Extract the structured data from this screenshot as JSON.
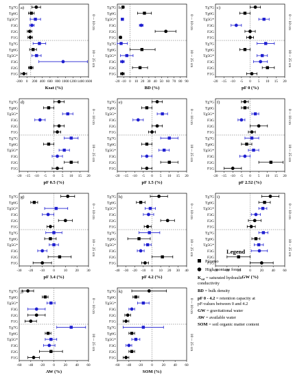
{
  "chart_data": [
    {
      "panel": "a)",
      "xlabel": "Ksat (%)",
      "xlim": [
        -200,
        1000
      ],
      "ticks": [
        -200,
        0,
        200,
        400,
        600,
        800,
        1000,
        1200,
        1400,
        1600
      ],
      "points": [
        {
          "v": 95,
          "lo": 20,
          "hi": 170
        },
        {
          "v": 10,
          "lo": -40,
          "hi": 60
        },
        {
          "v": 80,
          "lo": -10,
          "hi": 170
        },
        {
          "v": 20,
          "lo": -20,
          "hi": 60
        },
        {
          "v": -20,
          "lo": -60,
          "hi": 20
        },
        {
          "v": -10,
          "lo": -50,
          "hi": 30
        },
        {
          "v": 150,
          "lo": 40,
          "hi": 260
        },
        {
          "v": 40,
          "lo": -20,
          "hi": 100
        },
        {
          "v": 100,
          "lo": 20,
          "hi": 180
        },
        {
          "v": 560,
          "lo": 140,
          "hi": 980
        },
        {
          "v": 0,
          "lo": -40,
          "hi": 40
        },
        {
          "v": -120,
          "lo": -170,
          "hi": -70
        }
      ]
    },
    {
      "panel": "b)",
      "xlabel": "BD (%)",
      "xlim": [
        -20,
        90
      ],
      "ticks": [
        -20,
        -10,
        0,
        10,
        20,
        30,
        40,
        50,
        60,
        70,
        80,
        90
      ],
      "points": [
        {
          "v": -11,
          "lo": -13,
          "hi": -9
        },
        {
          "v": 23,
          "lo": 12,
          "hi": 34
        },
        {
          "v": -12,
          "lo": -14,
          "hi": -10
        },
        {
          "v": 18,
          "lo": 15,
          "hi": 21
        },
        {
          "v": 57,
          "lo": 40,
          "hi": 73
        },
        {
          "v": -15,
          "lo": -17,
          "hi": -13
        },
        {
          "v": -14,
          "lo": -24,
          "hi": -4
        },
        {
          "v": 19,
          "lo": 0,
          "hi": 40
        },
        {
          "v": -5,
          "lo": -15,
          "hi": 5
        },
        {
          "v": -12,
          "lo": -15,
          "hi": -9
        },
        {
          "v": 16,
          "lo": 4,
          "hi": 28
        },
        {
          "v": -12,
          "lo": -15,
          "hi": -9
        }
      ]
    },
    {
      "panel": "c)",
      "xlabel": "pF 0 (%)",
      "xlim": [
        -20,
        20
      ],
      "ticks": [
        -20,
        -15,
        -10,
        -5,
        0,
        5,
        10,
        15,
        20
      ],
      "points": [
        {
          "v": 3,
          "lo": 0,
          "hi": 6
        },
        {
          "v": -3,
          "lo": -6,
          "hi": 0
        },
        {
          "v": 8,
          "lo": 5,
          "hi": 11
        },
        {
          "v": -8,
          "lo": -11,
          "hi": -5
        },
        {
          "v": 0,
          "lo": -3,
          "hi": 3
        },
        {
          "v": 0,
          "lo": -2,
          "hi": 2
        },
        {
          "v": 9,
          "lo": 4,
          "hi": 14
        },
        {
          "v": -3,
          "lo": -6,
          "hi": 0
        },
        {
          "v": 7,
          "lo": 4,
          "hi": 10
        },
        {
          "v": 6,
          "lo": 2,
          "hi": 10
        },
        {
          "v": 10,
          "lo": 7,
          "hi": 14
        },
        {
          "v": 1,
          "lo": -2,
          "hi": 4
        }
      ]
    },
    {
      "panel": "d)",
      "xlabel": "pF 0.5 (%)",
      "xlim": [
        -20,
        20
      ],
      "ticks": [
        -20,
        -15,
        -10,
        -5,
        0,
        5,
        10,
        15,
        20
      ],
      "points": [
        {
          "v": 3,
          "lo": 0,
          "hi": 6
        },
        {
          "v": -3,
          "lo": -6,
          "hi": 0
        },
        {
          "v": 8,
          "lo": 5,
          "hi": 11
        },
        {
          "v": -8,
          "lo": -11,
          "hi": -5
        },
        {
          "v": 3,
          "lo": 0,
          "hi": 6
        },
        {
          "v": 2,
          "lo": 0,
          "hi": 4
        },
        {
          "v": 10,
          "lo": 6,
          "hi": 14
        },
        {
          "v": -3,
          "lo": -6,
          "hi": 0
        },
        {
          "v": 6,
          "lo": 3,
          "hi": 9
        },
        {
          "v": 2,
          "lo": -1,
          "hi": 5
        },
        {
          "v": 10,
          "lo": 6,
          "hi": 14
        },
        {
          "v": 2,
          "lo": -1,
          "hi": 5
        }
      ]
    },
    {
      "panel": "e)",
      "xlabel": "pF 1.5 (%)",
      "xlim": [
        -20,
        20
      ],
      "ticks": [
        -20,
        -15,
        -10,
        -5,
        0,
        5,
        10,
        15,
        20
      ],
      "points": [
        {
          "v": 3,
          "lo": 0,
          "hi": 6
        },
        {
          "v": -3,
          "lo": -6,
          "hi": 0
        },
        {
          "v": 6,
          "lo": 3,
          "hi": 9
        },
        {
          "v": -8,
          "lo": -11,
          "hi": -5
        },
        {
          "v": 3,
          "lo": 0,
          "hi": 6
        },
        {
          "v": 0,
          "lo": -2,
          "hi": 2
        },
        {
          "v": 10,
          "lo": 5,
          "hi": 15
        },
        {
          "v": -3,
          "lo": -6,
          "hi": 0
        },
        {
          "v": 7,
          "lo": 4,
          "hi": 10
        },
        {
          "v": -3,
          "lo": -6,
          "hi": 0
        },
        {
          "v": 10,
          "lo": 5,
          "hi": 15
        },
        {
          "v": -3,
          "lo": -6,
          "hi": 0
        }
      ]
    },
    {
      "panel": "f)",
      "xlabel": "pF 2.52 (%)",
      "xlim": [
        -20,
        20
      ],
      "ticks": [
        -20,
        -15,
        -10,
        -5,
        0,
        5,
        10,
        15,
        20
      ],
      "points": [
        {
          "v": -3,
          "lo": -5,
          "hi": -1
        },
        {
          "v": -3,
          "lo": -5,
          "hi": -1
        },
        {
          "v": 3,
          "lo": 1,
          "hi": 5
        },
        {
          "v": -5,
          "lo": -7,
          "hi": -3
        },
        {
          "v": 5,
          "lo": 0,
          "hi": 10
        },
        {
          "v": 1,
          "lo": -1,
          "hi": 3
        },
        {
          "v": 1,
          "lo": -3,
          "hi": 5
        },
        {
          "v": -2,
          "lo": -5,
          "hi": 1
        },
        {
          "v": 2,
          "lo": -1,
          "hi": 5
        },
        {
          "v": -3,
          "lo": -6,
          "hi": 0
        },
        {
          "v": 12,
          "lo": 5,
          "hi": 19
        },
        {
          "v": -10,
          "lo": -15,
          "hi": -5
        }
      ]
    },
    {
      "panel": "g)",
      "xlabel": "pF 3.4 (%)",
      "xlim": [
        -30,
        30
      ],
      "ticks": [
        -30,
        -20,
        -10,
        0,
        10,
        20,
        30
      ],
      "points": [
        {
          "v": 12,
          "lo": 6,
          "hi": 18
        },
        {
          "v": -17,
          "lo": -20,
          "hi": -14
        },
        {
          "v": 2,
          "lo": -8,
          "hi": 12
        },
        {
          "v": -5,
          "lo": -10,
          "hi": 0
        },
        {
          "v": 10,
          "lo": 4,
          "hi": 16
        },
        {
          "v": -3,
          "lo": -6,
          "hi": 0
        },
        {
          "v": 0,
          "lo": -7,
          "hi": 7
        },
        {
          "v": -3,
          "lo": -8,
          "hi": 2
        },
        {
          "v": 0,
          "lo": -4,
          "hi": 4
        },
        {
          "v": -10,
          "lo": -14,
          "hi": -6
        },
        {
          "v": 5,
          "lo": -5,
          "hi": 15
        },
        {
          "v": -10,
          "lo": -18,
          "hi": -2
        }
      ]
    },
    {
      "panel": "h)",
      "xlabel": "pF 4.2 (%)",
      "xlim": [
        -40,
        40
      ],
      "ticks": [
        -40,
        -30,
        -20,
        -10,
        0,
        10,
        20,
        30,
        40
      ],
      "points": [
        {
          "v": 8,
          "lo": -2,
          "hi": 18
        },
        {
          "v": -13,
          "lo": -18,
          "hi": -8
        },
        {
          "v": -2,
          "lo": -8,
          "hi": 4
        },
        {
          "v": -4,
          "lo": -10,
          "hi": 2
        },
        {
          "v": 18,
          "lo": 10,
          "hi": 26
        },
        {
          "v": -5,
          "lo": -9,
          "hi": -1
        },
        {
          "v": -3,
          "lo": -15,
          "hi": 9
        },
        {
          "v": -15,
          "lo": -28,
          "hi": -2
        },
        {
          "v": -5,
          "lo": -9,
          "hi": -1
        },
        {
          "v": -13,
          "lo": -17,
          "hi": -9
        },
        {
          "v": 12,
          "lo": 0,
          "hi": 24
        },
        {
          "v": -8,
          "lo": -12,
          "hi": -4
        }
      ]
    },
    {
      "panel": "i)",
      "xlabel": "GW (%)",
      "xlim": [
        -60,
        60
      ],
      "ticks": [
        -60,
        -40,
        -20,
        0,
        20,
        40,
        60
      ],
      "points": [
        {
          "v": 35,
          "lo": 20,
          "hi": 50
        },
        {
          "v": 25,
          "lo": 15,
          "hi": 35
        },
        {
          "v": 22,
          "lo": 15,
          "hi": 29
        },
        {
          "v": 10,
          "lo": 2,
          "hi": 18
        },
        {
          "v": 8,
          "lo": -3,
          "hi": 19
        },
        {
          "v": 2,
          "lo": -5,
          "hi": 9
        },
        {
          "v": 23,
          "lo": 15,
          "hi": 31
        },
        {
          "v": 10,
          "lo": 3,
          "hi": 17
        },
        {
          "v": 15,
          "lo": 7,
          "hi": 23
        },
        {
          "v": 16,
          "lo": 2,
          "hi": 30
        },
        {
          "v": -20,
          "lo": -40,
          "hi": 0
        },
        {
          "v": 20,
          "lo": 0,
          "hi": 40
        }
      ]
    },
    {
      "panel": "j)",
      "xlabel": "AW (%)",
      "xlim": [
        -60,
        60
      ],
      "ticks": [
        -60,
        -40,
        -20,
        0,
        20,
        40,
        60
      ],
      "points": [
        {
          "v": -45,
          "lo": -55,
          "hi": -35
        },
        {
          "v": -15,
          "lo": -20,
          "hi": -10
        },
        {
          "v": -5,
          "lo": -12,
          "hi": 2
        },
        {
          "v": -30,
          "lo": -45,
          "hi": -15
        },
        {
          "v": -30,
          "lo": -45,
          "hi": -15
        },
        {
          "v": -40,
          "lo": -50,
          "hi": -30
        },
        {
          "v": 30,
          "lo": 5,
          "hi": 55
        },
        {
          "v": -10,
          "lo": -15,
          "hi": -5
        },
        {
          "v": -5,
          "lo": -15,
          "hi": 5
        },
        {
          "v": -8,
          "lo": -18,
          "hi": 2
        },
        {
          "v": -5,
          "lo": -25,
          "hi": 15
        },
        {
          "v": -35,
          "lo": -45,
          "hi": -25
        }
      ]
    },
    {
      "panel": "k)",
      "xlabel": "SOM (%)",
      "xlim": [
        -60,
        60
      ],
      "ticks": [
        -60,
        -40,
        -20,
        0,
        20,
        40,
        60
      ],
      "points": [
        {
          "v": -5,
          "lo": -35,
          "hi": 25
        },
        {
          "v": -28,
          "lo": -33,
          "hi": -23
        },
        {
          "v": -15,
          "lo": -25,
          "hi": -5
        },
        {
          "v": -35,
          "lo": -40,
          "hi": -30
        },
        {
          "v": -42,
          "lo": -47,
          "hi": -37
        },
        {
          "v": -45,
          "lo": -50,
          "hi": -40
        },
        {
          "v": -15,
          "lo": -50,
          "hi": 20
        },
        {
          "v": -35,
          "lo": -40,
          "hi": -30
        },
        {
          "v": -28,
          "lo": -35,
          "hi": -21
        },
        {
          "v": -40,
          "lo": -45,
          "hi": -35
        },
        {
          "v": -35,
          "lo": -40,
          "hi": -30
        },
        {
          "v": -45,
          "lo": -50,
          "hi": -40
        }
      ]
    }
  ],
  "rows": [
    "Tg7G",
    "Tg6G",
    "Tg5G*",
    "F3G",
    "F2G",
    "F1G",
    "Tg7G",
    "Tg6G",
    "Tg5G*",
    "F3G",
    "F2G",
    "F1G"
  ],
  "row_colors": [
    "#000000",
    "#000000",
    "#1f1fd0",
    "#1f1fd0",
    "#000000",
    "#000000",
    "#1f1fd0",
    "#000000",
    "#1f1fd0",
    "#1f1fd0",
    "#000000",
    "#000000"
  ],
  "row_marker": [
    "circle",
    "square",
    "square",
    "circle",
    "circle",
    "circle",
    "square",
    "square",
    "square",
    "circle",
    "square",
    "circle"
  ],
  "depth_top": "0 -- 10 cm",
  "depth_bottom": "10 -- 25 cm",
  "legend": {
    "title": "Legend",
    "paramo": "Páramo",
    "forest": "High montane forest",
    "ksat_key": "K",
    "ksat_sub": "sat",
    "ksat_desc": " = saturated hydraulic",
    "ksat_desc2": "conductivity",
    "bd_key": "BD",
    "bd_desc": " = bulk density",
    "pf_key": "pF 0 - 4.2",
    "pf_desc": " = retention capacity at",
    "pf_desc2": "pF-values between 0 and 4.2",
    "gw_key": "GW",
    "gw_desc": " = gravitational water",
    "aw_key": "AW",
    "aw_desc": " = available water",
    "som_key": "SOM",
    "som_desc": " = soil organic matter content"
  },
  "colors": {
    "blue": "#1f1fd0",
    "black": "#000000"
  }
}
